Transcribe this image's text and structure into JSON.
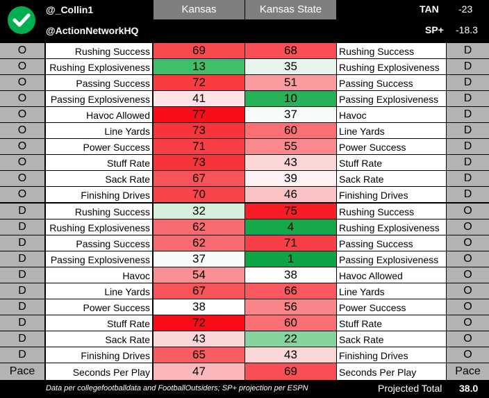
{
  "header": {
    "handle1": "@_Collin1",
    "handle2": "@ActionNetworkHQ",
    "team1": "Kansas",
    "team2": "Kansas State",
    "tan_label": "TAN",
    "tan_value": "-23",
    "sp_label": "SP+",
    "sp_value": "-18.3",
    "check_icon": "check-circle-icon",
    "check_color": "#00b050"
  },
  "top_section": {
    "left_side": "O",
    "right_side": "D",
    "rows": [
      {
        "left_label": "Rushing Success",
        "v1": "69",
        "v2": "68",
        "right_label": "Rushing Success",
        "c1": "#f8494f",
        "c2": "#f84e54"
      },
      {
        "left_label": "Rushing Explosiveness",
        "v1": "13",
        "v2": "35",
        "right_label": "Rushing Explosiveness",
        "c1": "#3fbf68",
        "c2": "#e8f5ec"
      },
      {
        "left_label": "Passing Success",
        "v1": "72",
        "v2": "51",
        "right_label": "Passing Success",
        "c1": "#f83c42",
        "c2": "#fa9c9f"
      },
      {
        "left_label": "Passing Explosiveness",
        "v1": "41",
        "v2": "10",
        "right_label": "Passing Explosiveness",
        "c1": "#fde3e4",
        "c2": "#27b257"
      },
      {
        "left_label": "Havoc Allowed",
        "v1": "77",
        "v2": "37",
        "right_label": "Havoc",
        "c1": "#f80e18",
        "c2": "#f7fbf8"
      },
      {
        "left_label": "Line Yards",
        "v1": "73",
        "v2": "60",
        "right_label": "Line Yards",
        "c1": "#f8343b",
        "c2": "#f96f74"
      },
      {
        "left_label": "Power Success",
        "v1": "71",
        "v2": "55",
        "right_label": "Power Success",
        "c1": "#f83f46",
        "c2": "#fa898d"
      },
      {
        "left_label": "Stuff Rate",
        "v1": "73",
        "v2": "43",
        "right_label": "Stuff Rate",
        "c1": "#f8343b",
        "c2": "#fcd7d8"
      },
      {
        "left_label": "Sack Rate",
        "v1": "67",
        "v2": "39",
        "right_label": "Sack Rate",
        "c1": "#f85359",
        "c2": "#fef1f1"
      },
      {
        "left_label": "Finishing Drives",
        "v1": "70",
        "v2": "46",
        "right_label": "Finishing Drives",
        "c1": "#f8444a",
        "c2": "#fbc2c4"
      }
    ]
  },
  "bottom_section": {
    "left_side": "D",
    "right_side": "O",
    "rows": [
      {
        "left_label": "Rushing Success",
        "v1": "32",
        "v2": "75",
        "right_label": "Rushing Success",
        "c1": "#d6efdc",
        "c2": "#f81c24"
      },
      {
        "left_label": "Rushing Explosiveness",
        "v1": "62",
        "v2": "4",
        "right_label": "Rushing Explosiveness",
        "c1": "#f86a6f",
        "c2": "#16a94a"
      },
      {
        "left_label": "Passing Success",
        "v1": "62",
        "v2": "71",
        "right_label": "Passing Success",
        "c1": "#f86a6f",
        "c2": "#f83f46"
      },
      {
        "left_label": "Passing Explosiveness",
        "v1": "37",
        "v2": "1",
        "right_label": "Passing Explosiveness",
        "c1": "#f7fbf8",
        "c2": "#0fa445"
      },
      {
        "left_label": "Havoc",
        "v1": "54",
        "v2": "38",
        "right_label": "Havoc Allowed",
        "c1": "#fa8f93",
        "c2": "#ffffff"
      },
      {
        "left_label": "Line Yards",
        "v1": "67",
        "v2": "66",
        "right_label": "Line Yards",
        "c1": "#f85359",
        "c2": "#f8585e"
      },
      {
        "left_label": "Power Success",
        "v1": "38",
        "v2": "56",
        "right_label": "Power Success",
        "c1": "#ffffff",
        "c2": "#fa8589"
      },
      {
        "left_label": "Stuff Rate",
        "v1": "72",
        "v2": "60",
        "right_label": "Stuff Rate",
        "c1": "#f80c16",
        "c2": "#f96f74"
      },
      {
        "left_label": "Sack Rate",
        "v1": "43",
        "v2": "22",
        "right_label": "Sack Rate",
        "c1": "#fcd7d8",
        "c2": "#85d39d"
      },
      {
        "left_label": "Finishing Drives",
        "v1": "65",
        "v2": "43",
        "right_label": "Finishing Drives",
        "c1": "#f85d62",
        "c2": "#fcd7d8"
      }
    ]
  },
  "pace_row": {
    "left_side": "Pace",
    "right_side": "Pace",
    "left_label": "Seconds Per Play",
    "v1": "47",
    "v2": "69",
    "right_label": "Seconds Per Play",
    "c1": "#fbb8ba",
    "c2": "#f84e54"
  },
  "footer": {
    "source": "Data per collegefootballdata and FootballOutsiders; SP+ projection per ESPN",
    "projected_label": "Projected Total",
    "projected_value": "38.0"
  }
}
